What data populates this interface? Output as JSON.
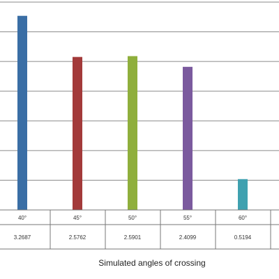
{
  "chart_data": {
    "type": "bar",
    "categories": [
      "40°",
      "45°",
      "50°",
      "55°",
      "60°"
    ],
    "values": [
      3.2687,
      2.5762,
      2.5901,
      2.4099,
      0.5194
    ],
    "value_labels": [
      "3.2687",
      "2.5762",
      "2.5901",
      "2.4099",
      "0.5194"
    ],
    "xlabel": "Simulated angles of crossing",
    "ylabel": "",
    "title": "",
    "ylim": [
      0,
      3.5
    ],
    "ytick_step": 0.5,
    "grid": true,
    "data_table": true,
    "colors": [
      "#3A6EA5",
      "#A33A3A",
      "#8FAF3C",
      "#7B5A9E",
      "#3FA1B0"
    ]
  }
}
